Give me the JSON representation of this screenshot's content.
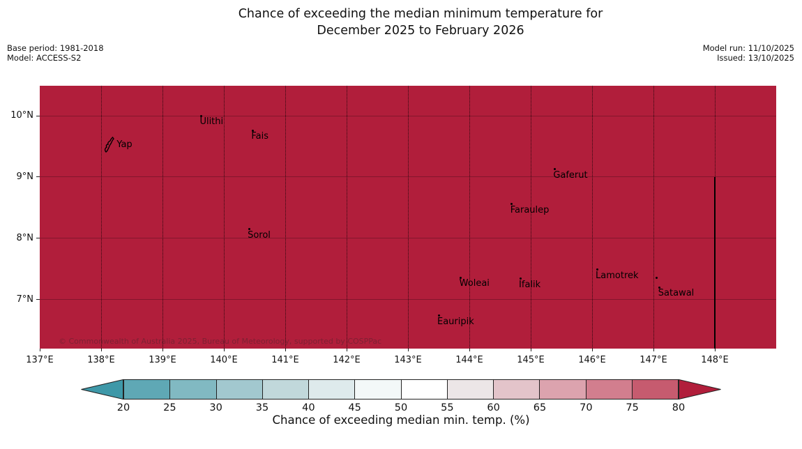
{
  "title": {
    "line1": "Chance of exceeding the median minimum temperature for",
    "line2": "December 2025 to February 2026"
  },
  "meta": {
    "base_period": "Base period: 1981-2018",
    "model": "Model: ACCESS-S2",
    "model_run": "Model run: 11/10/2025",
    "issued": "Issued: 13/10/2025"
  },
  "map": {
    "fill_color": "#b11e3b",
    "copyright": "© Commonwealth of Australia 2025, Bureau of Meteorology, supported by COSPPac",
    "boundary_line": {
      "lon": 148,
      "lat_from": 9.0,
      "lat_to": 6.2
    }
  },
  "chart_data": {
    "type": "heatmap",
    "title": "Chance of exceeding the median minimum temperature for December 2025 to February 2026",
    "field_name": "Chance of exceeding median min. temp. (%)",
    "depicted_value": "entire mapped region shaded in the > 80% class (dark red)",
    "lon_range": [
      137,
      149
    ],
    "lat_range": [
      6.2,
      10.49
    ],
    "lon_ticks": {
      "values": [
        137,
        138,
        139,
        140,
        141,
        142,
        143,
        144,
        145,
        146,
        147,
        148
      ],
      "labels": [
        "137°E",
        "138°E",
        "139°E",
        "140°E",
        "141°E",
        "142°E",
        "143°E",
        "144°E",
        "145°E",
        "146°E",
        "147°E",
        "148°E"
      ]
    },
    "lat_ticks": {
      "values": [
        10,
        9,
        8,
        7
      ],
      "labels": [
        "10°N",
        "9°N",
        "8°N",
        "7°N"
      ]
    },
    "colorbar": {
      "label": "Chance of exceeding median min. temp. (%)",
      "ticks": [
        20,
        25,
        30,
        35,
        40,
        45,
        50,
        55,
        60,
        65,
        70,
        75,
        80
      ],
      "segment_colors": [
        "#5fa8b5",
        "#81b9c2",
        "#a2c8cf",
        "#c1d8db",
        "#deeaec",
        "#f3f8f8",
        "#ffffff",
        "#ece6e7",
        "#e3c4ca",
        "#dca3ae",
        "#d27e8e",
        "#c65b6f"
      ],
      "under_color": "#3e98a8",
      "over_color": "#b11e3b"
    },
    "places": [
      {
        "name": "Ulithi",
        "lon": 139.63,
        "lat": 10.0
      },
      {
        "name": "Fais",
        "lon": 140.47,
        "lat": 9.76
      },
      {
        "name": "Yap",
        "lon": 138.14,
        "lat": 9.53,
        "marker": "island"
      },
      {
        "name": "Gaferut",
        "lon": 145.39,
        "lat": 9.13
      },
      {
        "name": "Faraulep",
        "lon": 144.69,
        "lat": 8.56
      },
      {
        "name": "Sorol",
        "lon": 140.41,
        "lat": 8.15
      },
      {
        "name": "Woleai",
        "lon": 143.86,
        "lat": 7.36
      },
      {
        "name": "Ifalik",
        "lon": 144.83,
        "lat": 7.34
      },
      {
        "name": "Lamotrek",
        "lon": 146.08,
        "lat": 7.49
      },
      {
        "name": "",
        "lon": 147.05,
        "lat": 7.36
      },
      {
        "name": "Satawal",
        "lon": 147.1,
        "lat": 7.2
      },
      {
        "name": "Eauripik",
        "lon": 143.5,
        "lat": 6.74
      }
    ]
  }
}
